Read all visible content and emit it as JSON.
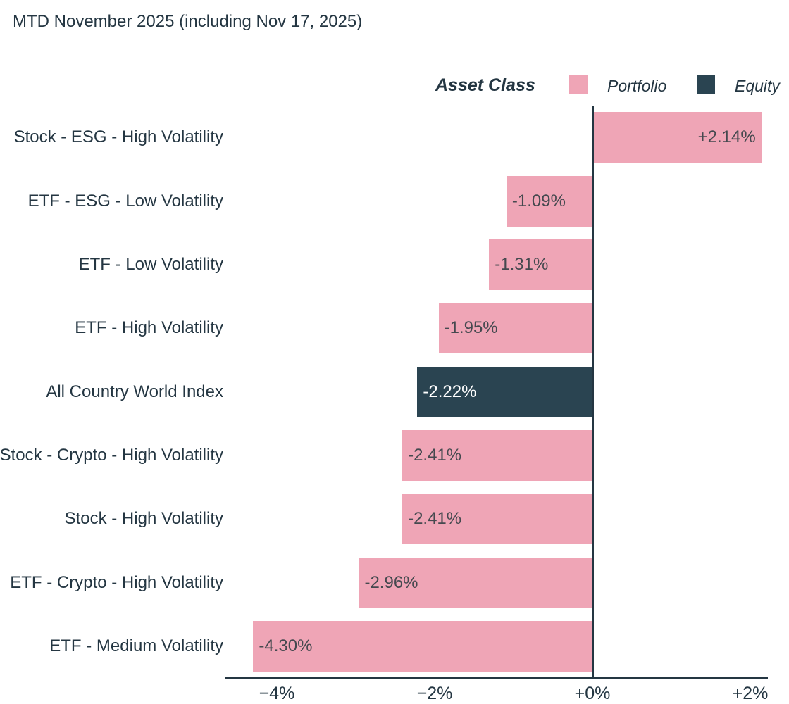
{
  "title": "MTD November 2025 (including Nov 17, 2025)",
  "legend": {
    "title": "Asset Class",
    "items": [
      {
        "label": "Portfolio",
        "color": "#efa5b6"
      },
      {
        "label": "Equity",
        "color": "#2a4451"
      }
    ]
  },
  "colors": {
    "portfolio_bar": "#efa5b6",
    "equity_bar": "#2a4451",
    "text": "#243642",
    "axis": "#243642",
    "value_label_on_portfolio": "#45494f",
    "value_label_on_equity": "#ffffff",
    "background": "#ffffff"
  },
  "chart_data": {
    "type": "bar",
    "orientation": "horizontal",
    "title": "MTD November 2025 (including Nov 17, 2025)",
    "legend_title": "Asset Class",
    "legend_position": "top-right",
    "grid": false,
    "xlabel": "",
    "ylabel": "",
    "xlim": [
      -4.65,
      2.5
    ],
    "unit": "percent",
    "categories": [
      "Stock - ESG - High Volatility",
      "ETF - ESG - Low Volatility",
      "ETF - Low Volatility",
      "ETF - High Volatility",
      "All Country World Index",
      "Stock - Crypto - High Volatility",
      "Stock - High Volatility",
      "ETF - Crypto - High Volatility",
      "ETF - Medium Volatility"
    ],
    "series": [
      {
        "name": "Portfolio",
        "color": "#efa5b6",
        "label_color": "#45494f"
      },
      {
        "name": "Equity",
        "color": "#2a4451",
        "label_color": "#ffffff"
      }
    ],
    "bars": [
      {
        "category": "Stock - ESG - High Volatility",
        "value": 2.14,
        "label": "+2.14%",
        "series": "Portfolio"
      },
      {
        "category": "ETF - ESG - Low Volatility",
        "value": -1.09,
        "label": "-1.09%",
        "series": "Portfolio"
      },
      {
        "category": "ETF - Low Volatility",
        "value": -1.31,
        "label": "-1.31%",
        "series": "Portfolio"
      },
      {
        "category": "ETF - High Volatility",
        "value": -1.95,
        "label": "-1.95%",
        "series": "Portfolio"
      },
      {
        "category": "All Country World Index",
        "value": -2.22,
        "label": "-2.22%",
        "series": "Equity"
      },
      {
        "category": "Stock - Crypto - High Volatility",
        "value": -2.41,
        "label": "-2.41%",
        "series": "Portfolio"
      },
      {
        "category": "Stock - High Volatility",
        "value": -2.41,
        "label": "-2.41%",
        "series": "Portfolio"
      },
      {
        "category": "ETF - Crypto - High Volatility",
        "value": -2.96,
        "label": "-2.96%",
        "series": "Portfolio"
      },
      {
        "category": "ETF - Medium Volatility",
        "value": -4.3,
        "label": "-4.30%",
        "series": "Portfolio"
      }
    ],
    "xticks": [
      {
        "value": -4,
        "label": "−4%"
      },
      {
        "value": -2,
        "label": "−2%"
      },
      {
        "value": 0,
        "label": "+0%"
      },
      {
        "value": 2,
        "label": "+2%"
      }
    ]
  }
}
